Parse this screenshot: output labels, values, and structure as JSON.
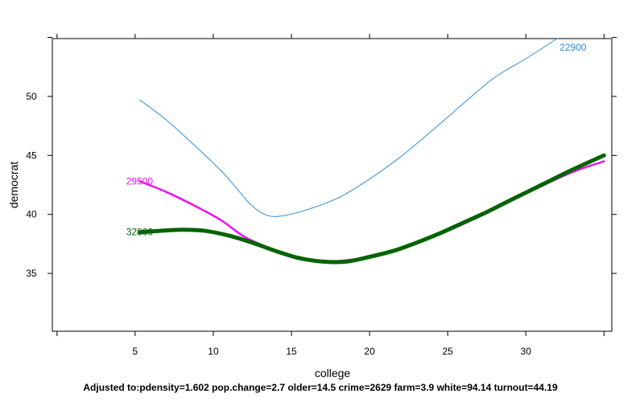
{
  "chart_data": {
    "type": "line",
    "xlabel": "college",
    "ylabel": "democrat",
    "xlim": [
      -0.3,
      35.5
    ],
    "ylim": [
      30.1,
      54.9
    ],
    "xticks": [
      5,
      10,
      15,
      20,
      25,
      30
    ],
    "yticks": [
      35,
      40,
      45,
      50
    ],
    "grid": false,
    "caption": "Adjusted to:pdensity=1.602 pop.change=2.7 older=14.5 crime=2629 farm=3.9 white=94.14 turnout=44.19",
    "series": [
      {
        "name": "22900",
        "color": "#2b8fd8",
        "width": "thin",
        "label_anchor": "end",
        "points": [
          [
            5.3,
            49.7
          ],
          [
            7,
            48
          ],
          [
            9,
            45.6
          ],
          [
            10.5,
            43.7
          ],
          [
            11.5,
            42.2
          ],
          [
            12.5,
            40.7
          ],
          [
            13.5,
            39.9
          ],
          [
            14.5,
            39.9
          ],
          [
            16,
            40.4
          ],
          [
            18,
            41.4
          ],
          [
            20,
            43
          ],
          [
            22,
            44.9
          ],
          [
            24,
            47.1
          ],
          [
            26,
            49.4
          ],
          [
            28,
            51.6
          ],
          [
            30,
            53.2
          ],
          [
            32,
            54.9
          ]
        ]
      },
      {
        "name": "29500",
        "color": "#ee11ee",
        "width": "medium",
        "label_anchor": "start",
        "points": [
          [
            5.3,
            42.8
          ],
          [
            7,
            41.9
          ],
          [
            9,
            40.6
          ],
          [
            10.5,
            39.5
          ],
          [
            12,
            38.1
          ],
          [
            13.5,
            37.2
          ],
          [
            15,
            36.4
          ],
          [
            17,
            36
          ],
          [
            19,
            36.2
          ],
          [
            21,
            36.8
          ],
          [
            23,
            37.6
          ],
          [
            25,
            38.6
          ],
          [
            27,
            39.8
          ],
          [
            29,
            41.1
          ],
          [
            31,
            42.4
          ],
          [
            33,
            43.6
          ],
          [
            35,
            44.5
          ]
        ]
      },
      {
        "name": "32800",
        "color": "#006400",
        "width": "thick",
        "label_anchor": "start",
        "points": [
          [
            5.3,
            38.5
          ],
          [
            6.5,
            38.6
          ],
          [
            8,
            38.7
          ],
          [
            9.5,
            38.6
          ],
          [
            11,
            38.2
          ],
          [
            12.5,
            37.6
          ],
          [
            14,
            36.9
          ],
          [
            15.5,
            36.3
          ],
          [
            17,
            36
          ],
          [
            18.5,
            36
          ],
          [
            20,
            36.4
          ],
          [
            21.5,
            36.9
          ],
          [
            23,
            37.6
          ],
          [
            24.5,
            38.4
          ],
          [
            26,
            39.3
          ],
          [
            27.5,
            40.2
          ],
          [
            29,
            41.2
          ],
          [
            31,
            42.5
          ],
          [
            33,
            43.8
          ],
          [
            35,
            45
          ]
        ]
      }
    ]
  }
}
